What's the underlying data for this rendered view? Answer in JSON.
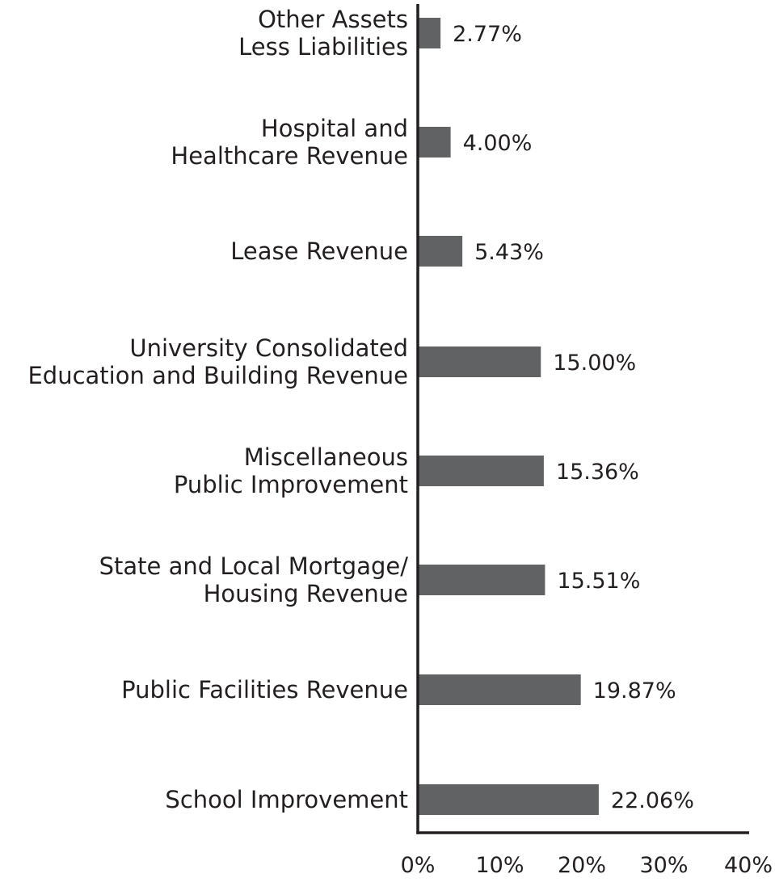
{
  "chart_data": {
    "type": "bar",
    "orientation": "horizontal",
    "categories": [
      [
        "Other Assets",
        "Less Liabilities"
      ],
      [
        "Hospital and",
        "Healthcare Revenue"
      ],
      [
        "Lease Revenue"
      ],
      [
        "University Consolidated",
        "Education and Building Revenue"
      ],
      [
        "Miscellaneous",
        "Public Improvement"
      ],
      [
        "State and Local Mortgage/",
        "Housing Revenue"
      ],
      [
        "Public Facilities Revenue"
      ],
      [
        "School Improvement"
      ]
    ],
    "values": [
      2.77,
      4.0,
      5.43,
      15.0,
      15.36,
      15.51,
      19.87,
      22.06
    ],
    "value_labels": [
      "2.77%",
      "4.00%",
      "5.43%",
      "15.00%",
      "15.36%",
      "15.51%",
      "19.87%",
      "22.06%"
    ],
    "xlim": [
      0,
      40
    ],
    "x_ticks": [
      0,
      10,
      20,
      30,
      40
    ],
    "x_tick_labels": [
      "0%",
      "10%",
      "20%",
      "30%",
      "40%"
    ],
    "title": "",
    "xlabel": "",
    "ylabel": "",
    "grid": false,
    "legend": "none",
    "colors": {
      "bar": "#616264",
      "text": "#231f20",
      "axis": "#231f20"
    }
  }
}
